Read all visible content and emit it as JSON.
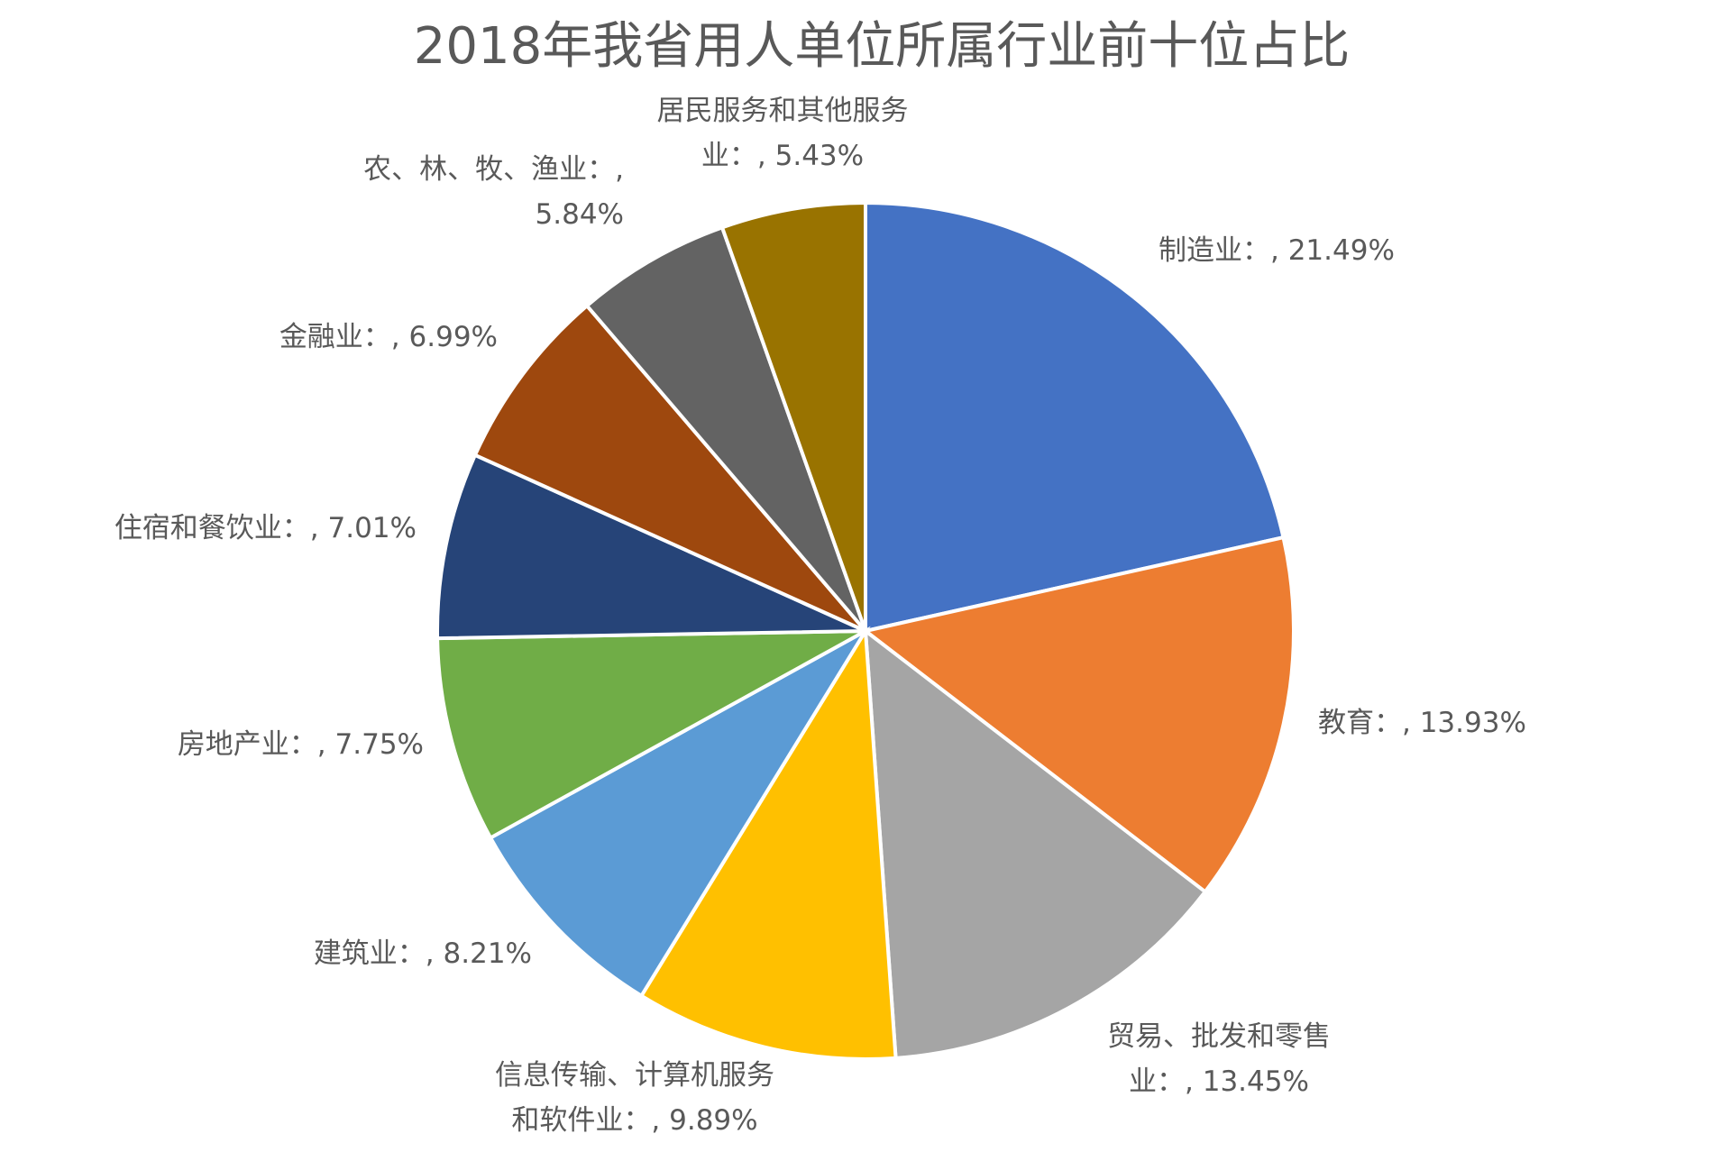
{
  "chart_data": {
    "type": "pie",
    "title": "2018年我省用人单位所属行业前十位占比",
    "slices": [
      {
        "label_lines": [
          "制造业：, 21.49%"
        ],
        "value": 21.49,
        "color": "#4472C4"
      },
      {
        "label_lines": [
          "教育：, 13.93%"
        ],
        "value": 13.93,
        "color": "#ED7D31"
      },
      {
        "label_lines": [
          "贸易、批发和零售",
          "业：, 13.45%"
        ],
        "value": 13.45,
        "color": "#A5A5A5"
      },
      {
        "label_lines": [
          "信息传输、计算机服务",
          "和软件业：, 9.89%"
        ],
        "value": 9.89,
        "color": "#FFC000"
      },
      {
        "label_lines": [
          "建筑业：, 8.21%"
        ],
        "value": 8.21,
        "color": "#5B9BD5"
      },
      {
        "label_lines": [
          "房地产业：, 7.75%"
        ],
        "value": 7.75,
        "color": "#70AD47"
      },
      {
        "label_lines": [
          "住宿和餐饮业：, 7.01%"
        ],
        "value": 7.01,
        "color": "#264478"
      },
      {
        "label_lines": [
          "金融业：, 6.99%"
        ],
        "value": 6.99,
        "color": "#9E480E"
      },
      {
        "label_lines": [
          "农、林、牧、渔业：,",
          "5.84%"
        ],
        "value": 5.84,
        "color": "#636363"
      },
      {
        "label_lines": [
          "居民服务和其他服务",
          "业：, 5.43%"
        ],
        "value": 5.43,
        "color": "#997300"
      }
    ]
  }
}
